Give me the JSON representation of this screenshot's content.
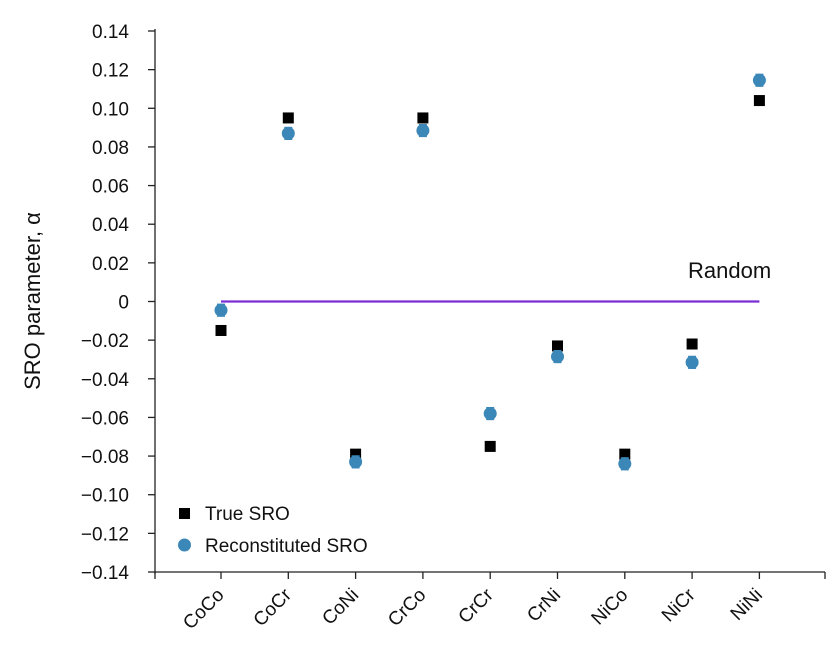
{
  "chart_data": {
    "type": "scatter",
    "title": "",
    "xlabel": "",
    "ylabel": "SRO parameter, α",
    "categories": [
      "CoCo",
      "CoCr",
      "CoNi",
      "CrCo",
      "CrCr",
      "CrNi",
      "NiCo",
      "NiCr",
      "NiNi"
    ],
    "y_tick_labels": [
      "0.14",
      "0.12",
      "0.10",
      "0.08",
      "0.06",
      "0.04",
      "0.02",
      "0",
      "−0.02",
      "−0.04",
      "−0.06",
      "−0.08",
      "−0.10",
      "−0.12",
      "−0.14"
    ],
    "ylim": [
      -0.14,
      0.14
    ],
    "grid": false,
    "legend_position": "bottom-left",
    "series": [
      {
        "name": "True SRO",
        "marker": "square",
        "color": "#000000",
        "values": [
          -0.015,
          0.095,
          -0.079,
          0.095,
          -0.075,
          -0.023,
          -0.079,
          -0.022,
          0.104
        ]
      },
      {
        "name": "Reconstituted SRO",
        "marker": "circle",
        "color": "#3a87b8",
        "values": [
          -0.0045,
          0.087,
          -0.083,
          0.0885,
          -0.058,
          -0.0285,
          -0.084,
          -0.0315,
          0.1145
        ],
        "errors": [
          0.003,
          0.003,
          0.003,
          0.003,
          0.003,
          0.003,
          0.003,
          0.003,
          0.003
        ]
      }
    ],
    "reference_line": {
      "label": "Random",
      "value": 0,
      "color": "#7a2fd6"
    }
  }
}
